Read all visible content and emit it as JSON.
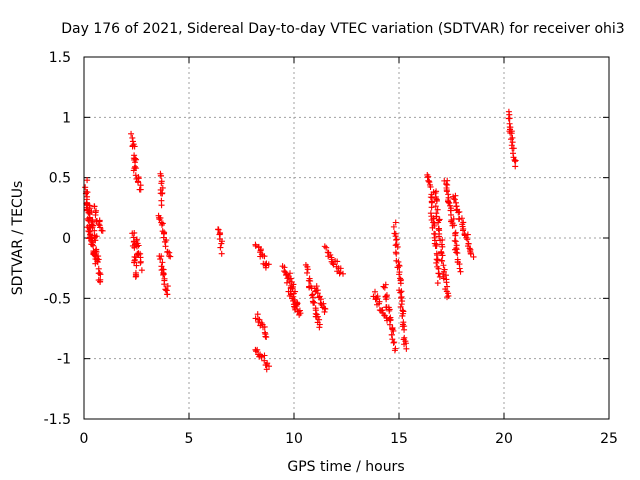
{
  "chart_data": {
    "type": "scatter",
    "title": "Day 176 of 2021, Sidereal Day-to-day VTEC variation (SDTVAR) for receiver ohi3",
    "xlabel": "GPS time / hours",
    "ylabel": "SDTVAR / TECUs",
    "xlim": [
      0,
      25
    ],
    "ylim": [
      -1.5,
      1.5
    ],
    "xticks": [
      0,
      5,
      10,
      15,
      20,
      25
    ],
    "yticks": [
      -1.5,
      -1,
      -0.5,
      0,
      0.5,
      1,
      1.5
    ],
    "xtick_labels": [
      "0",
      "5",
      "10",
      "15",
      "20",
      "25"
    ],
    "ytick_labels": [
      "-1.5",
      "-1",
      "-0.5",
      "0",
      "0.5",
      "1",
      "1.5"
    ],
    "grid": true,
    "marker": "+",
    "color": "#ff0000",
    "series": [
      {
        "name": "SDTVAR",
        "segments": [
          {
            "x0": 0.1,
            "x1": 0.25,
            "y0": 0.45,
            "y1": 0.0
          },
          {
            "x0": 0.15,
            "x1": 0.45,
            "y0": 0.3,
            "y1": -0.15
          },
          {
            "x0": 0.3,
            "x1": 0.55,
            "y0": 0.25,
            "y1": 0.0
          },
          {
            "x0": 0.5,
            "x1": 0.85,
            "y0": 0.25,
            "y1": 0.05
          },
          {
            "x0": 0.3,
            "x1": 0.6,
            "y0": 0.0,
            "y1": -0.2
          },
          {
            "x0": 0.55,
            "x1": 0.8,
            "y0": -0.05,
            "y1": -0.38
          },
          {
            "x0": 2.3,
            "x1": 2.45,
            "y0": 0.85,
            "y1": 0.6
          },
          {
            "x0": 2.4,
            "x1": 2.7,
            "y0": 0.6,
            "y1": 0.4
          },
          {
            "x0": 2.35,
            "x1": 2.5,
            "y0": 0.05,
            "y1": -0.32
          },
          {
            "x0": 2.5,
            "x1": 2.7,
            "y0": 0.0,
            "y1": -0.25
          },
          {
            "x0": 3.65,
            "x1": 3.75,
            "y0": 0.55,
            "y1": 0.3
          },
          {
            "x0": 3.6,
            "x1": 4.05,
            "y0": 0.2,
            "y1": -0.15
          },
          {
            "x0": 3.6,
            "x1": 4.0,
            "y0": -0.15,
            "y1": -0.48
          },
          {
            "x0": 6.4,
            "x1": 6.55,
            "y0": 0.08,
            "y1": -0.1
          },
          {
            "x0": 8.2,
            "x1": 8.75,
            "y0": -0.05,
            "y1": -0.25
          },
          {
            "x0": 8.2,
            "x1": 8.7,
            "y0": -0.65,
            "y1": -0.8
          },
          {
            "x0": 8.2,
            "x1": 8.8,
            "y0": -0.9,
            "y1": -1.07
          },
          {
            "x0": 9.5,
            "x1": 10.1,
            "y0": -0.25,
            "y1": -0.6
          },
          {
            "x0": 9.8,
            "x1": 10.3,
            "y0": -0.3,
            "y1": -0.65
          },
          {
            "x0": 10.6,
            "x1": 11.2,
            "y0": -0.25,
            "y1": -0.75
          },
          {
            "x0": 11.0,
            "x1": 11.5,
            "y0": -0.4,
            "y1": -0.6
          },
          {
            "x0": 11.5,
            "x1": 12.3,
            "y0": -0.1,
            "y1": -0.3
          },
          {
            "x0": 13.8,
            "x1": 14.4,
            "y0": -0.45,
            "y1": -0.7
          },
          {
            "x0": 14.3,
            "x1": 14.8,
            "y0": -0.4,
            "y1": -0.93
          },
          {
            "x0": 14.8,
            "x1": 15.3,
            "y0": 0.1,
            "y1": -0.9
          },
          {
            "x0": 16.4,
            "x1": 16.9,
            "y0": 0.55,
            "y1": -0.35
          },
          {
            "x0": 16.7,
            "x1": 17.3,
            "y0": 0.4,
            "y1": -0.5
          },
          {
            "x0": 17.2,
            "x1": 17.9,
            "y0": 0.5,
            "y1": -0.25
          },
          {
            "x0": 17.6,
            "x1": 18.5,
            "y0": 0.35,
            "y1": -0.15
          },
          {
            "x0": 20.2,
            "x1": 20.55,
            "y0": 1.05,
            "y1": 0.6
          }
        ]
      }
    ]
  }
}
